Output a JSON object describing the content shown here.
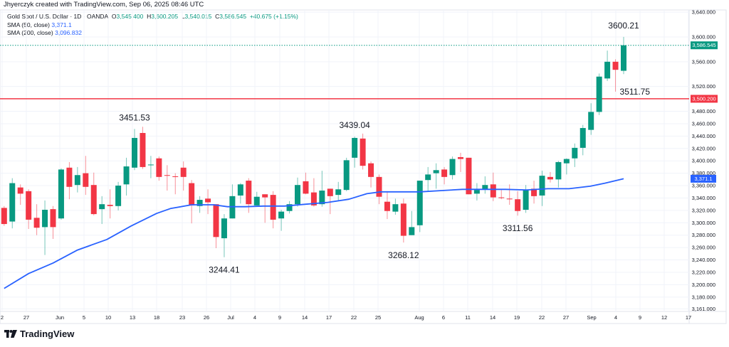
{
  "attribution": "Jhyerczyk created with TradingView.com, Sep 06, 2025 08:46 UTC",
  "legend": {
    "symbol": "Gold Spot / U.S. Dollar · 1D · OANDA",
    "o_label": "O",
    "o": "3,545.400",
    "h_label": "H",
    "h": "3,600.205",
    "l_label": "L",
    "l": "3,540.015",
    "c_label": "C",
    "c": "3,586.545",
    "change": "+40.675 (+1.15%)",
    "sma50_label": "SMA (50, close)",
    "sma50_value": "3,371.1",
    "sma200_label": "SMA (200, close)",
    "sma200_value": "3,096.832"
  },
  "logo": {
    "text": "TradingView"
  },
  "colors": {
    "up": "#089981",
    "down": "#f23645",
    "sma": "#2962ff",
    "level": "#f23645",
    "grid": "#f0f3fa"
  },
  "chart_data": {
    "type": "candlestick",
    "scale": "linear",
    "grid": true,
    "y_ticks": [
      "3,640.000",
      "3,600.000",
      "3,560.000",
      "3,520.000",
      "3,480.000",
      "3,460.000",
      "3,440.000",
      "3,420.000",
      "3,400.000",
      "3,380.000",
      "3,360.000",
      "3,340.000",
      "3,320.000",
      "3,300.000",
      "3,280.000",
      "3,260.000",
      "3,240.000",
      "3,220.000",
      "3,200.000",
      "3,180.000",
      "3,161.000"
    ],
    "y_tick_values": [
      3640,
      3600,
      3560,
      3520,
      3480,
      3460,
      3440,
      3420,
      3400,
      3380,
      3360,
      3340,
      3320,
      3300,
      3280,
      3260,
      3240,
      3220,
      3200,
      3180,
      3161
    ],
    "x_ticks": [
      "2",
      "27",
      "Jun",
      "5",
      "10",
      "13",
      "18",
      "23",
      "26",
      "Jul",
      "4",
      "9",
      "14",
      "17",
      "22",
      "25",
      "Aug",
      "6",
      "11",
      "14",
      "19",
      "22",
      "27",
      "Sep",
      "4",
      "9",
      "12",
      "17"
    ],
    "candles_ohlc": [
      [
        3324,
        3327,
        3295,
        3298
      ],
      [
        3302,
        3372,
        3291,
        3364
      ],
      [
        3357,
        3362,
        3329,
        3347
      ],
      [
        3351,
        3354,
        3290,
        3305
      ],
      [
        3308,
        3330,
        3280,
        3292
      ],
      [
        3293,
        3336,
        3248,
        3321
      ],
      [
        3322,
        3327,
        3274,
        3293
      ],
      [
        3307,
        3388,
        3305,
        3386
      ],
      [
        3389,
        3398,
        3338,
        3358
      ],
      [
        3361,
        3390,
        3349,
        3377
      ],
      [
        3380,
        3408,
        3345,
        3358
      ],
      [
        3361,
        3381,
        3312,
        3314
      ],
      [
        3322,
        3343,
        3298,
        3330
      ],
      [
        3329,
        3354,
        3307,
        3327
      ],
      [
        3327,
        3366,
        3320,
        3360
      ],
      [
        3362,
        3405,
        3344,
        3391
      ],
      [
        3389,
        3451.53,
        3385,
        3437
      ],
      [
        3445,
        3455,
        3387,
        3390
      ],
      [
        3393,
        3408,
        3372,
        3394
      ],
      [
        3404,
        3407,
        3368,
        3374
      ],
      [
        3377,
        3393,
        3352,
        3376
      ],
      [
        3375,
        3380,
        3346,
        3374
      ],
      [
        3389,
        3399,
        3352,
        3374
      ],
      [
        3364,
        3369,
        3299,
        3328
      ],
      [
        3327,
        3343,
        3316,
        3337
      ],
      [
        3339,
        3354,
        3314,
        3333
      ],
      [
        3330,
        3330,
        3259,
        3277
      ],
      [
        3275,
        3314,
        3244.41,
        3307
      ],
      [
        3307,
        3362,
        3307,
        3343
      ],
      [
        3344,
        3364,
        3331,
        3362
      ],
      [
        3368,
        3372,
        3316,
        3330
      ],
      [
        3328,
        3350,
        3328,
        3342
      ],
      [
        3346,
        3346,
        3300,
        3341
      ],
      [
        3345,
        3351,
        3291,
        3305
      ],
      [
        3307,
        3321,
        3287,
        3318
      ],
      [
        3319,
        3335,
        3315,
        3330
      ],
      [
        3330,
        3373,
        3326,
        3361
      ],
      [
        3367,
        3381,
        3346,
        3347
      ],
      [
        3349,
        3372,
        3326,
        3328
      ],
      [
        3330,
        3384,
        3326,
        3352
      ],
      [
        3355,
        3355,
        3314,
        3343
      ],
      [
        3345,
        3366,
        3336,
        3354
      ],
      [
        3353,
        3405,
        3351,
        3401
      ],
      [
        3405,
        3439.04,
        3389,
        3437
      ],
      [
        3436,
        3444,
        3386,
        3392
      ],
      [
        3396,
        3399,
        3357,
        3374
      ],
      [
        3374,
        3378,
        3330,
        3342
      ],
      [
        3334,
        3351,
        3306,
        3319
      ],
      [
        3318,
        3339,
        3313,
        3330
      ],
      [
        3331,
        3339,
        3268.12,
        3279
      ],
      [
        3280,
        3319,
        3280,
        3293
      ],
      [
        3296,
        3368,
        3285,
        3368
      ],
      [
        3369,
        3390,
        3350,
        3378
      ],
      [
        3380,
        3396,
        3355,
        3385
      ],
      [
        3386,
        3390,
        3362,
        3374
      ],
      [
        3377,
        3407,
        3370,
        3403
      ],
      [
        3406,
        3413,
        3382,
        3403
      ],
      [
        3405,
        3405,
        3346,
        3346
      ],
      [
        3347,
        3364,
        3336,
        3353
      ],
      [
        3354,
        3375,
        3347,
        3361
      ],
      [
        3362,
        3381,
        3335,
        3341
      ],
      [
        3341,
        3353,
        3338,
        3340
      ],
      [
        3339,
        3362,
        3329,
        3338
      ],
      [
        3338,
        3351,
        3311.56,
        3319
      ],
      [
        3321,
        3361,
        3316,
        3353
      ],
      [
        3355,
        3368,
        3331,
        3343
      ],
      [
        3344,
        3384,
        3327,
        3376
      ],
      [
        3374,
        3382,
        3365,
        3370
      ],
      [
        3370,
        3400,
        3357,
        3398
      ],
      [
        3396,
        3404,
        3378,
        3403
      ],
      [
        3404,
        3428,
        3390,
        3421
      ],
      [
        3421,
        3458,
        3409,
        3453
      ],
      [
        3450,
        3493,
        3442,
        3479
      ],
      [
        3479,
        3541,
        3474,
        3536
      ],
      [
        3533,
        3578,
        3529,
        3560
      ],
      [
        3560,
        3564,
        3511.75,
        3547
      ],
      [
        3545.4,
        3600.205,
        3540.015,
        3586.545
      ]
    ],
    "sma50_points": [
      [
        1,
        3194
      ],
      [
        4,
        3218
      ],
      [
        7,
        3235
      ],
      [
        10,
        3256
      ],
      [
        13.6,
        3273
      ],
      [
        16.6,
        3295
      ],
      [
        19.7,
        3315
      ],
      [
        21.4,
        3323
      ],
      [
        24,
        3329
      ],
      [
        26.7,
        3329
      ],
      [
        28.4,
        3326
      ],
      [
        30.6,
        3326
      ],
      [
        32.8,
        3327
      ],
      [
        35.4,
        3327
      ],
      [
        38,
        3330
      ],
      [
        40.7,
        3333
      ],
      [
        43.3,
        3338
      ],
      [
        45.5,
        3347
      ],
      [
        47.2,
        3350
      ],
      [
        49.4,
        3350
      ],
      [
        52,
        3350
      ],
      [
        54.7,
        3352
      ],
      [
        57.2,
        3354
      ],
      [
        59.9,
        3354
      ],
      [
        62.5,
        3354
      ],
      [
        65.1,
        3353
      ],
      [
        67.7,
        3355
      ],
      [
        70.3,
        3355
      ],
      [
        72.9,
        3359
      ],
      [
        74.7,
        3364
      ],
      [
        77,
        3371.1
      ]
    ],
    "levels": [
      {
        "value": 3500.2,
        "label": "3,500.200",
        "color": "#f23645",
        "style": "solid"
      },
      {
        "value": 3586.545,
        "label": "3,586.545",
        "color": "#089981",
        "style": "dotted"
      }
    ],
    "sma_tag": {
      "value": 3371.1,
      "label": "3,371.1"
    },
    "annotations": [
      {
        "text": "3600.21",
        "candle": 77,
        "value": 3600.21,
        "pos": "above"
      },
      {
        "text": "3511.75",
        "candle": 76,
        "value": 3511.75,
        "pos": "right"
      },
      {
        "text": "3451.53",
        "candle": 17,
        "value": 3451.53,
        "pos": "above"
      },
      {
        "text": "3439.04",
        "candle": 44,
        "value": 3439.04,
        "pos": "above"
      },
      {
        "text": "3244.41",
        "candle": 28,
        "value": 3244.41,
        "pos": "below"
      },
      {
        "text": "3268.12",
        "candle": 50,
        "value": 3268.12,
        "pos": "below"
      },
      {
        "text": "3311.56",
        "candle": 64,
        "value": 3311.56,
        "pos": "below"
      }
    ]
  }
}
